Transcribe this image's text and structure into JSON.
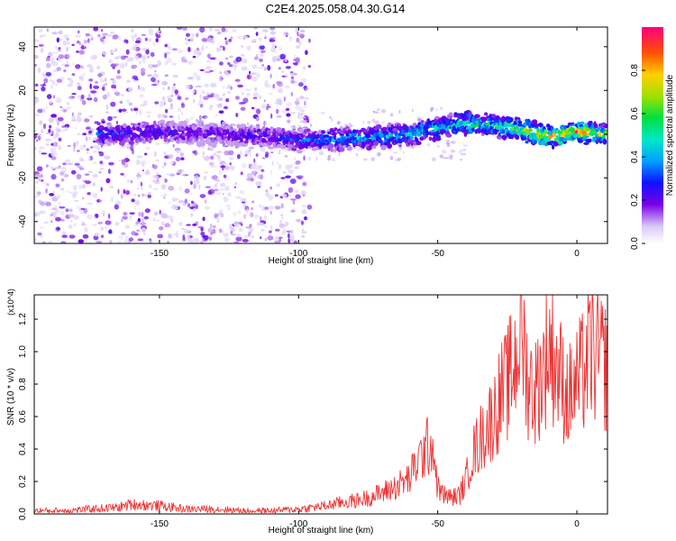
{
  "title": "C2E4.2025.058.04.30.G14",
  "colors": {
    "snr_line": "#ee3333",
    "frame": "#000000",
    "background": "#ffffff"
  },
  "chart_data": [
    {
      "type": "heatmap",
      "title": "C2E4.2025.058.04.30.G14",
      "xlabel": "Height of straight line (km)",
      "ylabel": "Frequency (Hz)",
      "xlim": [
        -195,
        11
      ],
      "ylim": [
        -50,
        49
      ],
      "x_ticks": [
        -150,
        -100,
        -50,
        0
      ],
      "x_tick_labels": [
        "-150",
        "-100",
        "-50",
        "0"
      ],
      "y_ticks": [
        -40,
        -20,
        0,
        20,
        40
      ],
      "y_tick_labels": [
        "-40",
        "-20",
        "0",
        "20",
        "40"
      ],
      "colorbar": {
        "label": "Normalized spectral amplitude",
        "range": [
          0,
          1
        ],
        "ticks": [
          0.0,
          0.2,
          0.4,
          0.6,
          0.8
        ],
        "tick_labels": [
          "0.0",
          "0.2",
          "0.4",
          "0.6",
          "0.8"
        ]
      },
      "ridge": {
        "description_points_x": [
          -170,
          -150,
          -130,
          -110,
          -100,
          -80,
          -60,
          -50,
          -40,
          -30,
          -20,
          -10,
          0,
          10
        ],
        "frequency_y": [
          0,
          1,
          0,
          -1,
          -3,
          -2,
          0,
          3,
          5,
          4,
          2,
          -1,
          1,
          0
        ],
        "peak_amplitude": [
          0.35,
          0.3,
          0.25,
          0.3,
          0.35,
          0.45,
          0.5,
          0.55,
          0.6,
          0.6,
          0.75,
          0.85,
          0.95,
          0.7
        ]
      },
      "scatter_region_x": [
        -195,
        -100
      ]
    },
    {
      "type": "line",
      "xlabel": "Height of straight line (km)",
      "ylabel": "SNR (10 * v/v)",
      "y_multiplier": "(x10^4)",
      "xlim": [
        -195,
        11
      ],
      "ylim": [
        0,
        1.35
      ],
      "x_ticks": [
        -150,
        -100,
        -50,
        0
      ],
      "x_tick_labels": [
        "-150",
        "-100",
        "-50",
        "0"
      ],
      "y_ticks": [
        0.0,
        0.2,
        0.4,
        0.6,
        0.8,
        1.0,
        1.2
      ],
      "y_tick_labels": [
        "0.0",
        "0.2",
        "0.4",
        "0.6",
        "0.8",
        "1.0",
        "1.2"
      ],
      "series": [
        {
          "name": "SNR",
          "x": [
            -195,
            -185,
            -175,
            -165,
            -160,
            -150,
            -140,
            -130,
            -120,
            -110,
            -100,
            -95,
            -90,
            -85,
            -80,
            -75,
            -70,
            -65,
            -60,
            -58,
            -55,
            -52,
            -50,
            -48,
            -45,
            -42,
            -40,
            -38,
            -35,
            -32,
            -30,
            -28,
            -25,
            -22,
            -20,
            -18,
            -15,
            -12,
            -10,
            -8,
            -5,
            -3,
            0,
            3,
            5,
            8,
            11
          ],
          "values": [
            0.02,
            0.02,
            0.03,
            0.04,
            0.06,
            0.05,
            0.03,
            0.03,
            0.02,
            0.02,
            0.03,
            0.04,
            0.05,
            0.07,
            0.08,
            0.1,
            0.13,
            0.17,
            0.22,
            0.3,
            0.38,
            0.45,
            0.16,
            0.12,
            0.1,
            0.12,
            0.2,
            0.35,
            0.45,
            0.55,
            0.6,
            0.7,
            0.8,
            0.95,
            1.2,
            0.85,
            0.75,
            0.9,
            1.05,
            0.95,
            0.8,
            0.72,
            0.8,
            0.9,
            1.0,
            0.95,
            0.9
          ]
        }
      ]
    }
  ]
}
